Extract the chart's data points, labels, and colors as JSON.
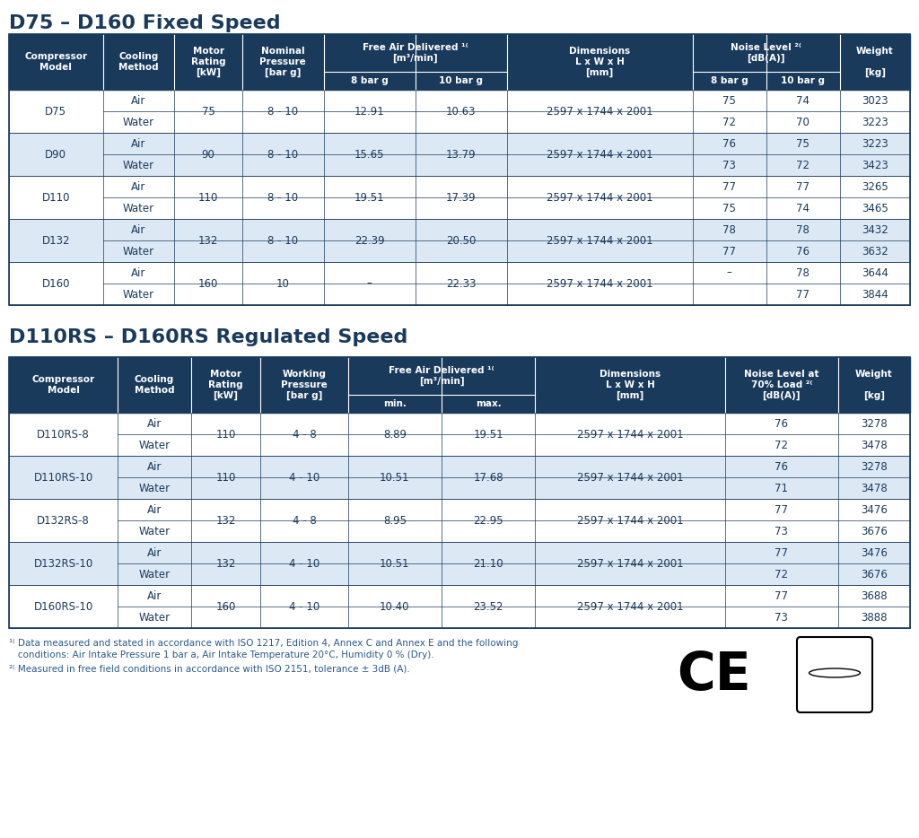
{
  "title1": "D75 – D160 Fixed Speed",
  "title2": "D110RS – D160RS Regulated Speed",
  "header_bg": "#1a3a5c",
  "header_fg": "#ffffff",
  "row_bg_light": "#dce9f5",
  "row_bg_white": "#ffffff",
  "border_color": "#1a3a5c",
  "title_color": "#1a3a5c",
  "data_color": "#1a3a5c",
  "table1_data": [
    [
      "D75",
      "Air",
      "75",
      "8 - 10",
      "12.91",
      "10.63",
      "2597 x 1744 x 2001",
      "75",
      "74",
      "3023"
    ],
    [
      "D75",
      "Water",
      "",
      "",
      "",
      "",
      "",
      "72",
      "70",
      "3223"
    ],
    [
      "D90",
      "Air",
      "90",
      "8 - 10",
      "15.65",
      "13.79",
      "2597 x 1744 x 2001",
      "76",
      "75",
      "3223"
    ],
    [
      "D90",
      "Water",
      "",
      "",
      "",
      "",
      "",
      "73",
      "72",
      "3423"
    ],
    [
      "D110",
      "Air",
      "110",
      "8 - 10",
      "19.51",
      "17.39",
      "2597 x 1744 x 2001",
      "77",
      "77",
      "3265"
    ],
    [
      "D110",
      "Water",
      "",
      "",
      "",
      "",
      "",
      "75",
      "74",
      "3465"
    ],
    [
      "D132",
      "Air",
      "132",
      "8 - 10",
      "22.39",
      "20.50",
      "2597 x 1744 x 2001",
      "78",
      "78",
      "3432"
    ],
    [
      "D132",
      "Water",
      "",
      "",
      "",
      "",
      "",
      "77",
      "76",
      "3632"
    ],
    [
      "D160",
      "Air",
      "160",
      "10",
      "–",
      "22.33",
      "2597 x 1744 x 2001",
      "–",
      "78",
      "3644"
    ],
    [
      "D160",
      "Water",
      "",
      "",
      "",
      "",
      "",
      "",
      "77",
      "3844"
    ]
  ],
  "table2_data": [
    [
      "D110RS-8",
      "Air",
      "110",
      "4 - 8",
      "8.89",
      "19.51",
      "2597 x 1744 x 2001",
      "76",
      "3278"
    ],
    [
      "D110RS-8",
      "Water",
      "",
      "",
      "",
      "",
      "",
      "72",
      "3478"
    ],
    [
      "D110RS-10",
      "Air",
      "110",
      "4 - 10",
      "10.51",
      "17.68",
      "2597 x 1744 x 2001",
      "76",
      "3278"
    ],
    [
      "D110RS-10",
      "Water",
      "",
      "",
      "",
      "",
      "",
      "71",
      "3478"
    ],
    [
      "D132RS-8",
      "Air",
      "132",
      "4 - 8",
      "8.95",
      "22.95",
      "2597 x 1744 x 2001",
      "77",
      "3476"
    ],
    [
      "D132RS-8",
      "Water",
      "",
      "",
      "",
      "",
      "",
      "73",
      "3676"
    ],
    [
      "D132RS-10",
      "Air",
      "132",
      "4 - 10",
      "10.51",
      "21.10",
      "2597 x 1744 x 2001",
      "77",
      "3476"
    ],
    [
      "D132RS-10",
      "Water",
      "",
      "",
      "",
      "",
      "",
      "72",
      "3676"
    ],
    [
      "D160RS-10",
      "Air",
      "160",
      "4 - 10",
      "10.40",
      "23.52",
      "2597 x 1744 x 2001",
      "77",
      "3688"
    ],
    [
      "D160RS-10",
      "Water",
      "",
      "",
      "",
      "",
      "",
      "73",
      "3888"
    ]
  ],
  "footnote1a": "¹⁽ Data measured and stated in accordance with ISO 1217, Edition 4, Annex C and Annex E and the following",
  "footnote1b": "   conditions: Air Intake Pressure 1 bar a, Air Intake Temperature 20°C, Humidity 0 % (Dry).",
  "footnote2": "²⁽ Measured in free field conditions in accordance with ISO 2151, tolerance ± 3dB (A)."
}
